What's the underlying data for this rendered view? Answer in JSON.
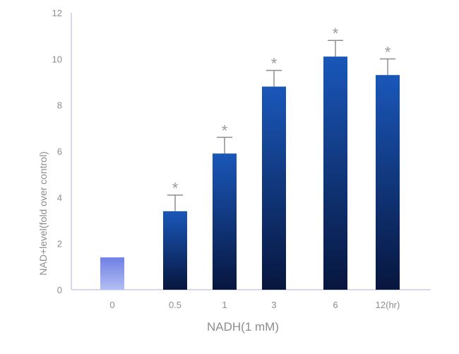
{
  "chart_data": {
    "type": "bar",
    "title": "",
    "xlabel": "NADH(1 mM)",
    "ylabel": "NAD+level(fold over control)",
    "categories": [
      "0",
      "0.5",
      "1",
      "3",
      "6",
      "12(hr)"
    ],
    "values": [
      1.4,
      3.4,
      5.9,
      8.8,
      10.1,
      9.3
    ],
    "errors": [
      null,
      0.7,
      0.7,
      0.7,
      0.7,
      0.7
    ],
    "significance": [
      "",
      "*",
      "*",
      "*",
      "*",
      "*"
    ],
    "ylim": [
      0,
      12
    ],
    "yticks": [
      0,
      2,
      4,
      6,
      8,
      10,
      12
    ],
    "grid": false,
    "colors": {
      "control_top": "#6f7fe4",
      "control_bottom": "#b3bdf4",
      "bar_top": "#1a57b9",
      "bar_bottom": "#07163e",
      "axis": "#c9cbe6",
      "text": "#8d8d8d",
      "error": "#8e8e8e",
      "star": "#9a9a9a"
    }
  }
}
